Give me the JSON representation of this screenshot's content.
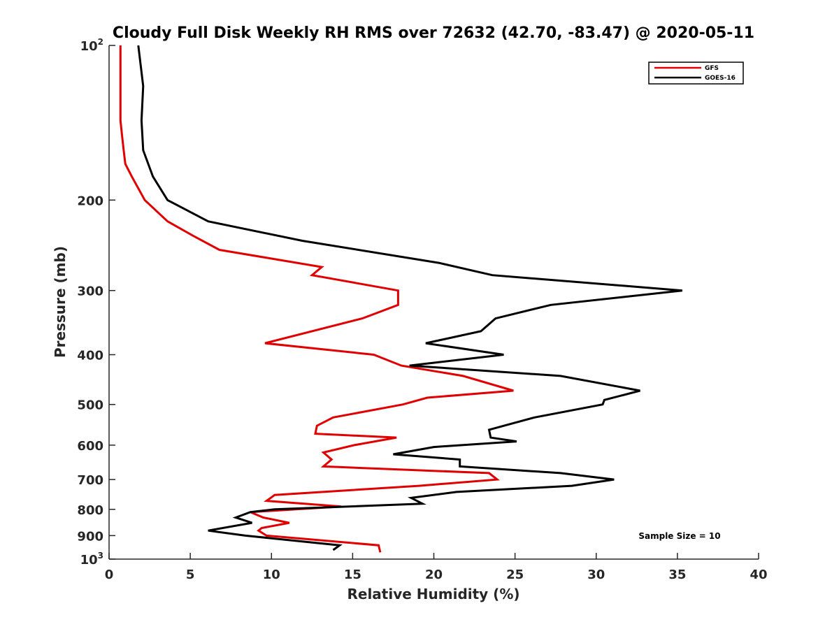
{
  "chart_data": {
    "type": "line",
    "title": "Cloudy Full Disk Weekly RH RMS over 72632 (42.70, -83.47) @ 2020-05-11",
    "xlabel": "Relative Humidity (%)",
    "ylabel": "Pressure (mb)",
    "xlim": [
      0,
      40
    ],
    "ylim": [
      100,
      1000
    ],
    "yscale": "log",
    "y_reversed": true,
    "x_ticks": [
      {
        "value": 0,
        "label": "0"
      },
      {
        "value": 5,
        "label": "5"
      },
      {
        "value": 10,
        "label": "10"
      },
      {
        "value": 15,
        "label": "15"
      },
      {
        "value": 20,
        "label": "20"
      },
      {
        "value": 25,
        "label": "25"
      },
      {
        "value": 30,
        "label": "30"
      },
      {
        "value": 35,
        "label": "35"
      },
      {
        "value": 40,
        "label": "40"
      }
    ],
    "y_ticks": [
      {
        "value": 100,
        "base": "10",
        "exp": "2"
      },
      {
        "value": 200,
        "label": "200"
      },
      {
        "value": 300,
        "label": "300"
      },
      {
        "value": 400,
        "label": "400"
      },
      {
        "value": 500,
        "label": "500"
      },
      {
        "value": 600,
        "label": "600"
      },
      {
        "value": 700,
        "label": "700"
      },
      {
        "value": 800,
        "label": "800"
      },
      {
        "value": 900,
        "label": "900"
      },
      {
        "value": 1000,
        "base": "10",
        "exp": "3"
      }
    ],
    "grid": false,
    "legend_position": "top-right",
    "annotation": "Sample Size = 10",
    "series": [
      {
        "name": "GFS",
        "color": "#e00000",
        "points": [
          [
            0.7,
            100
          ],
          [
            0.7,
            120
          ],
          [
            0.7,
            140
          ],
          [
            0.8,
            150
          ],
          [
            0.9,
            160
          ],
          [
            1.0,
            170
          ],
          [
            1.4,
            180
          ],
          [
            2.2,
            200
          ],
          [
            3.6,
            220
          ],
          [
            5.2,
            235
          ],
          [
            6.8,
            250
          ],
          [
            10.0,
            260
          ],
          [
            13.1,
            270
          ],
          [
            12.5,
            280
          ],
          [
            17.8,
            300
          ],
          [
            17.8,
            320
          ],
          [
            15.6,
            340
          ],
          [
            9.6,
            380
          ],
          [
            16.3,
            400
          ],
          [
            18.0,
            420
          ],
          [
            21.8,
            440
          ],
          [
            24.9,
            470
          ],
          [
            19.6,
            485
          ],
          [
            18.1,
            500
          ],
          [
            13.8,
            530
          ],
          [
            12.8,
            550
          ],
          [
            12.7,
            570
          ],
          [
            17.7,
            580
          ],
          [
            15.1,
            600
          ],
          [
            13.2,
            620
          ],
          [
            13.7,
            640
          ],
          [
            13.2,
            660
          ],
          [
            23.4,
            680
          ],
          [
            23.9,
            700
          ],
          [
            19.1,
            720
          ],
          [
            10.2,
            750
          ],
          [
            9.7,
            770
          ],
          [
            14.3,
            790
          ],
          [
            11.5,
            800
          ],
          [
            8.7,
            810
          ],
          [
            9.5,
            830
          ],
          [
            11.1,
            850
          ],
          [
            9.4,
            870
          ],
          [
            9.2,
            880
          ],
          [
            9.7,
            900
          ],
          [
            16.6,
            940
          ],
          [
            16.7,
            970
          ]
        ]
      },
      {
        "name": "GOES-16",
        "color": "#000000",
        "points": [
          [
            1.8,
            100
          ],
          [
            2.1,
            120
          ],
          [
            2.0,
            140
          ],
          [
            2.1,
            160
          ],
          [
            2.7,
            180
          ],
          [
            3.6,
            200
          ],
          [
            6.1,
            220
          ],
          [
            11.9,
            240
          ],
          [
            20.3,
            265
          ],
          [
            23.6,
            280
          ],
          [
            35.3,
            300
          ],
          [
            27.2,
            320
          ],
          [
            23.8,
            340
          ],
          [
            22.9,
            360
          ],
          [
            19.5,
            380
          ],
          [
            24.3,
            400
          ],
          [
            18.5,
            420
          ],
          [
            27.8,
            440
          ],
          [
            32.7,
            470
          ],
          [
            30.5,
            490
          ],
          [
            30.4,
            500
          ],
          [
            26.2,
            530
          ],
          [
            23.4,
            560
          ],
          [
            23.5,
            580
          ],
          [
            25.1,
            590
          ],
          [
            20.0,
            605
          ],
          [
            17.5,
            625
          ],
          [
            21.6,
            640
          ],
          [
            21.6,
            660
          ],
          [
            27.8,
            680
          ],
          [
            31.1,
            700
          ],
          [
            28.5,
            720
          ],
          [
            21.4,
            740
          ],
          [
            18.6,
            760
          ],
          [
            19.3,
            780
          ],
          [
            10.2,
            800
          ],
          [
            8.7,
            810
          ],
          [
            7.8,
            830
          ],
          [
            8.8,
            850
          ],
          [
            6.1,
            880
          ],
          [
            8.4,
            900
          ],
          [
            14.2,
            940
          ],
          [
            13.8,
            960
          ]
        ]
      }
    ]
  }
}
